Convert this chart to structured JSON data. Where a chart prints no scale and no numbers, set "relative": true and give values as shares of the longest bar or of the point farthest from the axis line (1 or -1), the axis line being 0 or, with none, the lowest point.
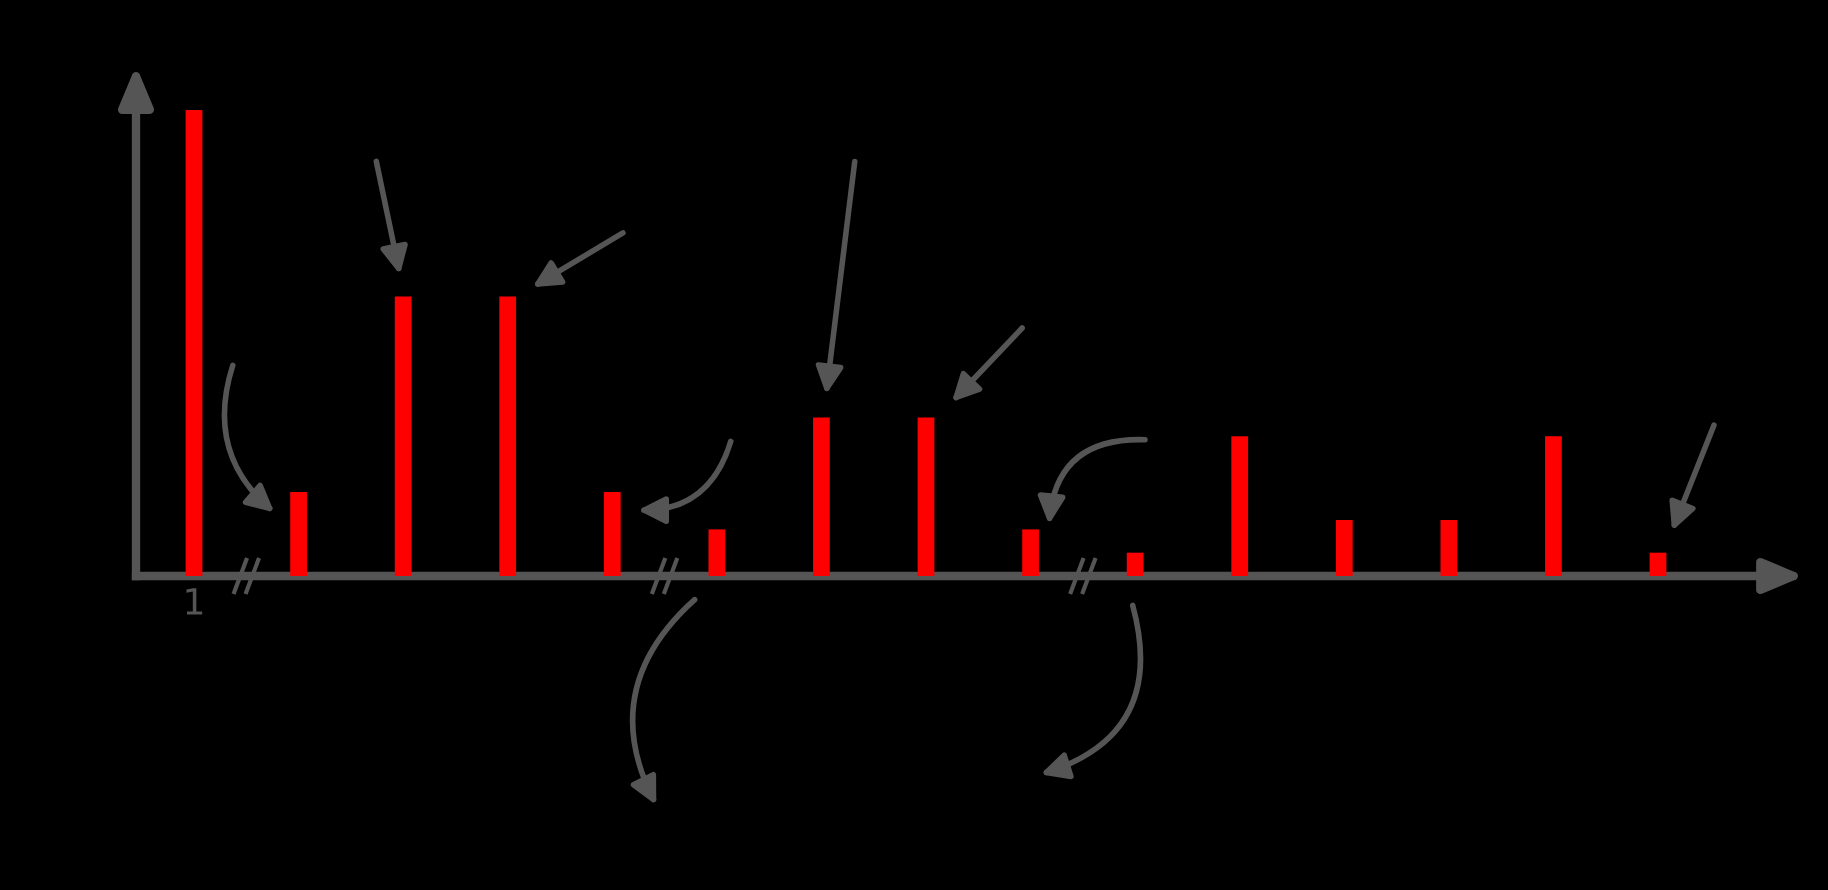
{
  "chart_data": {
    "type": "bar",
    "relative": true,
    "color": "#ff0000",
    "categories": [
      "1",
      null,
      null,
      null,
      null,
      null,
      null,
      null,
      null,
      null,
      null,
      null,
      null,
      null,
      null
    ],
    "values": [
      1.0,
      0.18,
      0.6,
      0.6,
      0.18,
      0.1,
      0.34,
      0.34,
      0.1,
      0.05,
      0.3,
      0.12,
      0.12,
      0.3,
      0.05
    ]
  }
}
